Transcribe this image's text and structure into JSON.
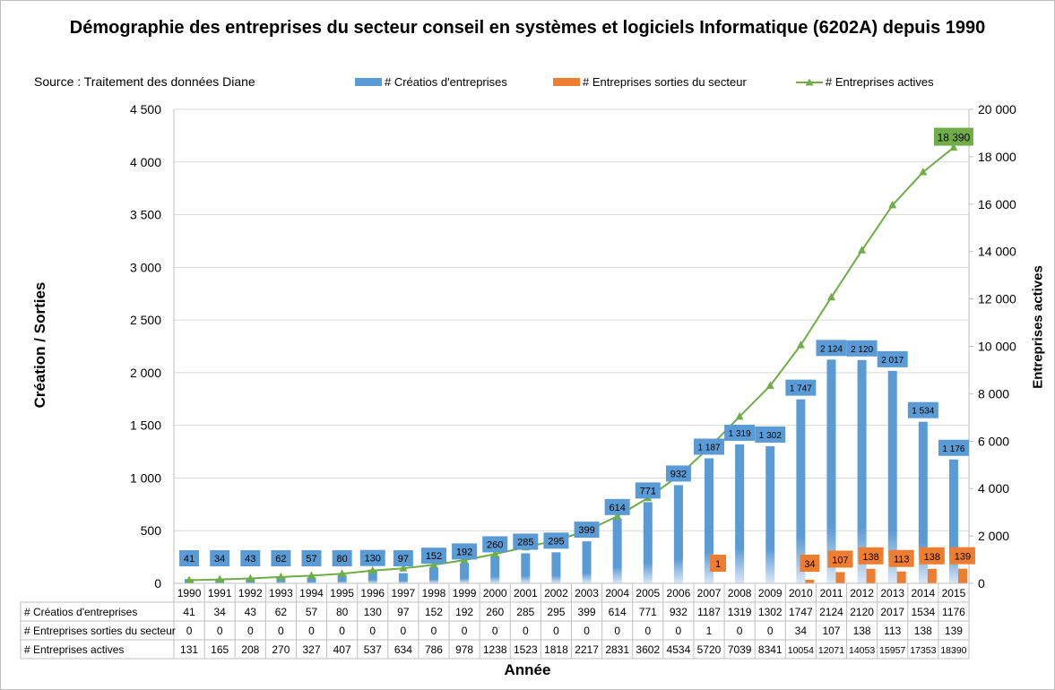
{
  "title": "Démographie des entreprises du secteur conseil en systèmes et logiciels Informatique (6202A) depuis 1990",
  "source": "Source : Traitement des données Diane",
  "legend": {
    "creations": "# Créatios d'entreprises",
    "sorties": "# Entreprises sorties du secteur",
    "actives": "# Entreprises actives"
  },
  "colors": {
    "creations": "#5b9bd5",
    "sorties": "#ed7d31",
    "actives": "#70ad47",
    "active_label_bg": "#70ad47"
  },
  "chart_data": {
    "type": "bar",
    "title": "Démographie des entreprises du secteur conseil en systèmes et logiciels Informatique (6202A) depuis 1990",
    "xlabel": "Année",
    "ylabel": "Création / Sorties",
    "y2label": "Entreprises actives",
    "ylim": [
      0,
      4500
    ],
    "y2lim": [
      0,
      20000
    ],
    "yticks": [
      "0",
      "500",
      "1 000",
      "1 500",
      "2 000",
      "2 500",
      "3 000",
      "3 500",
      "4 000",
      "4 500"
    ],
    "y2ticks": [
      "0",
      "2 000",
      "4 000",
      "6 000",
      "8 000",
      "10 000",
      "12 000",
      "14 000",
      "16 000",
      "18 000",
      "20 000"
    ],
    "categories": [
      "1990",
      "1991",
      "1992",
      "1993",
      "1994",
      "1995",
      "1996",
      "1997",
      "1998",
      "1999",
      "2000",
      "2001",
      "2002",
      "2003",
      "2004",
      "2005",
      "2006",
      "2007",
      "2008",
      "2009",
      "2010",
      "2011",
      "2012",
      "2013",
      "2014",
      "2015"
    ],
    "series": [
      {
        "name": "# Créatios d'entreprises",
        "type": "bar",
        "axis": "left",
        "values": [
          41,
          34,
          43,
          62,
          57,
          80,
          130,
          97,
          152,
          192,
          260,
          285,
          295,
          399,
          614,
          771,
          932,
          1187,
          1319,
          1302,
          1747,
          2124,
          2120,
          2017,
          1534,
          1176
        ],
        "labels": [
          "41",
          "34",
          "43",
          "62",
          "57",
          "80",
          "130",
          "97",
          "152",
          "192",
          "260",
          "285",
          "295",
          "399",
          "614",
          "771",
          "932",
          "1 187",
          "1 319",
          "1 302",
          "1 747",
          "2 124",
          "2 120",
          "2 017",
          "1 534",
          "1 176"
        ]
      },
      {
        "name": "# Entreprises sorties du secteur",
        "type": "bar",
        "axis": "left",
        "values": [
          0,
          0,
          0,
          0,
          0,
          0,
          0,
          0,
          0,
          0,
          0,
          0,
          0,
          0,
          0,
          0,
          0,
          1,
          0,
          0,
          34,
          107,
          138,
          113,
          138,
          139
        ],
        "labels": [
          "",
          "",
          "",
          "",
          "",
          "",
          "",
          "",
          "",
          "",
          "",
          "",
          "",
          "",
          "",
          "",
          "",
          "1",
          "",
          "",
          "34",
          "107",
          "138",
          "113",
          "138",
          "139"
        ]
      },
      {
        "name": "# Entreprises actives",
        "type": "line",
        "axis": "right",
        "values": [
          131,
          165,
          208,
          270,
          327,
          407,
          537,
          634,
          786,
          978,
          1238,
          1523,
          1818,
          2217,
          2831,
          3602,
          4534,
          5720,
          7039,
          8341,
          10054,
          12071,
          14053,
          15957,
          17353,
          18390
        ],
        "last_label": "18 390"
      }
    ],
    "table": {
      "rows": [
        {
          "label": "# Créatios d'entreprises",
          "cells": [
            "41",
            "34",
            "43",
            "62",
            "57",
            "80",
            "130",
            "97",
            "152",
            "192",
            "260",
            "285",
            "295",
            "399",
            "614",
            "771",
            "932",
            "1187",
            "1319",
            "1302",
            "1747",
            "2124",
            "2120",
            "2017",
            "1534",
            "1176"
          ]
        },
        {
          "label": "# Entreprises sorties du secteur",
          "cells": [
            "0",
            "0",
            "0",
            "0",
            "0",
            "0",
            "0",
            "0",
            "0",
            "0",
            "0",
            "0",
            "0",
            "0",
            "0",
            "0",
            "0",
            "1",
            "0",
            "0",
            "34",
            "107",
            "138",
            "113",
            "138",
            "139"
          ]
        },
        {
          "label": "# Entreprises actives",
          "cells": [
            "131",
            "165",
            "208",
            "270",
            "327",
            "407",
            "537",
            "634",
            "786",
            "978",
            "1238",
            "1523",
            "1818",
            "2217",
            "2831",
            "3602",
            "4534",
            "5720",
            "7039",
            "8341",
            "10054",
            "12071",
            "14053",
            "15957",
            "17353",
            "18390"
          ]
        }
      ]
    }
  }
}
